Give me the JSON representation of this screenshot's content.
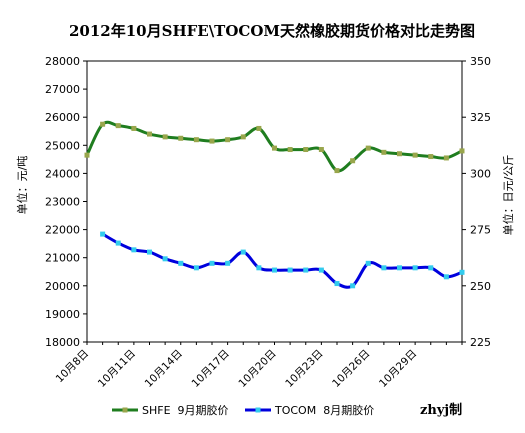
{
  "chart_data": {
    "type": "line",
    "title": "2012年10月SHFE\\TOCOM天然橡胶期货价格对比走势图",
    "ylabel_left": "单位：元/吨",
    "ylabel_right": "单位：日元/公斤",
    "credit": "zhyj制",
    "y_left_range": [
      18000,
      28000
    ],
    "y_left_ticks": [
      "18000",
      "19000",
      "20000",
      "21000",
      "22000",
      "23000",
      "24000",
      "25000",
      "26000",
      "27000",
      "28000"
    ],
    "y_right_range": [
      225,
      350
    ],
    "y_right_ticks": [
      "225",
      "250",
      "275",
      "300",
      "325",
      "350"
    ],
    "x_tick_labels": [
      "10月8日",
      "10月11日",
      "10月14日",
      "10月17日",
      "10月20日",
      "10月23日",
      "10月26日",
      "10月29日"
    ],
    "x_range": [
      0,
      24
    ],
    "x_tick_positions": [
      0,
      3,
      6,
      9,
      12,
      15,
      18,
      21
    ],
    "legend_position": "bottom",
    "series": [
      {
        "name": "SHFE  9月期胶价",
        "axis": "left",
        "color": "#1f7d1f",
        "marker_color": "#99a64c",
        "x": [
          0,
          1,
          2,
          3,
          4,
          5,
          6,
          7,
          8,
          9,
          10,
          11,
          12,
          13,
          14,
          15,
          16,
          17,
          18,
          19,
          20,
          21,
          22,
          23,
          24
        ],
        "values": [
          24650,
          25750,
          25700,
          25600,
          25400,
          25300,
          25250,
          25200,
          25150,
          25200,
          25300,
          25600,
          24900,
          24850,
          24850,
          24850,
          24100,
          24450,
          24900,
          24750,
          24700,
          24650,
          24600,
          24550,
          24800
        ]
      },
      {
        "name": "TOCOM  8月期胶价",
        "axis": "right",
        "color": "#0000dd",
        "marker_color": "#33ccee",
        "x": [
          1,
          2,
          3,
          4,
          5,
          6,
          7,
          8,
          9,
          10,
          11,
          12,
          13,
          14,
          15,
          16,
          17,
          18,
          19,
          20,
          21,
          22,
          23,
          24
        ],
        "values": [
          273,
          269,
          266,
          265,
          262,
          260,
          258,
          260,
          260,
          265,
          258,
          257,
          257,
          257,
          257,
          251,
          250,
          260,
          258,
          258,
          258,
          258,
          254,
          256
        ]
      }
    ]
  }
}
